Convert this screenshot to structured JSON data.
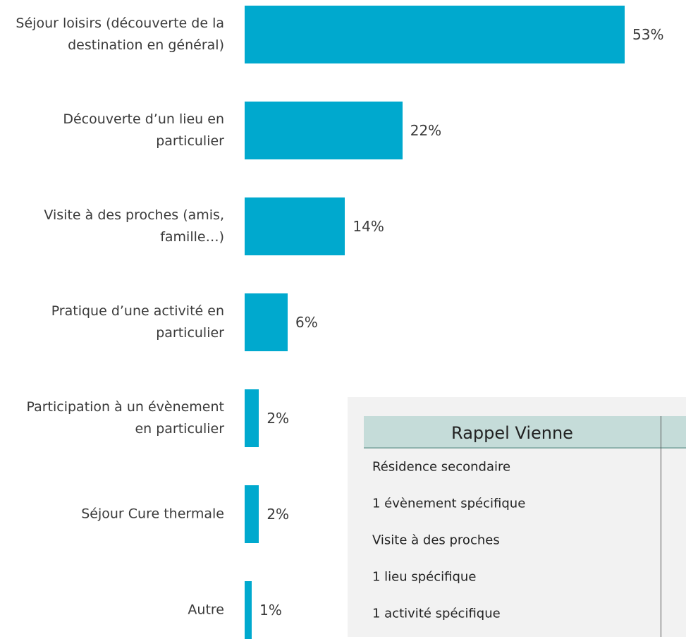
{
  "chart_data": {
    "type": "bar",
    "orientation": "horizontal",
    "categories": [
      "Séjour loisirs (découverte de la destination en général)",
      "Découverte d’un lieu en particulier",
      "Visite à des proches (amis, famille…)",
      "Pratique d’une activité en particulier",
      "Participation à un évènement en particulier",
      "Séjour Cure thermale",
      "Autre"
    ],
    "values": [
      53,
      22,
      14,
      6,
      2,
      2,
      1
    ],
    "value_labels": [
      "53%",
      "22%",
      "14%",
      "6%",
      "2%",
      "2%",
      "1%"
    ],
    "color": "#00a9ce"
  },
  "table": {
    "header": [
      "Rappel Vienne"
    ],
    "rows": [
      [
        "Résidence secondaire"
      ],
      [
        "1 évènement spécifique"
      ],
      [
        "Visite à des proches"
      ],
      [
        "1 lieu spécifique"
      ],
      [
        "1 activité spécifique"
      ]
    ]
  }
}
